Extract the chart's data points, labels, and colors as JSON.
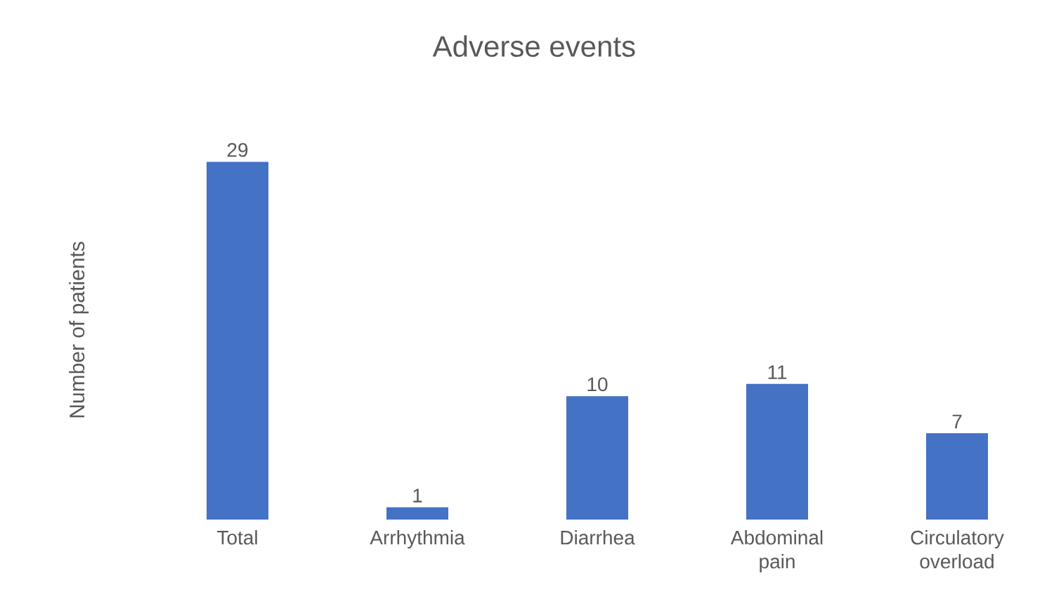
{
  "chart_data": {
    "type": "bar",
    "title": "Adverse events",
    "ylabel": "Number of patients",
    "categories": [
      "Total",
      "Arrhythmia",
      "Diarrhea",
      "Abdominal pain",
      "Circulatory overload"
    ],
    "values": [
      29,
      1,
      10,
      11,
      7
    ],
    "color": "#4472c4",
    "data_labels": true
  }
}
